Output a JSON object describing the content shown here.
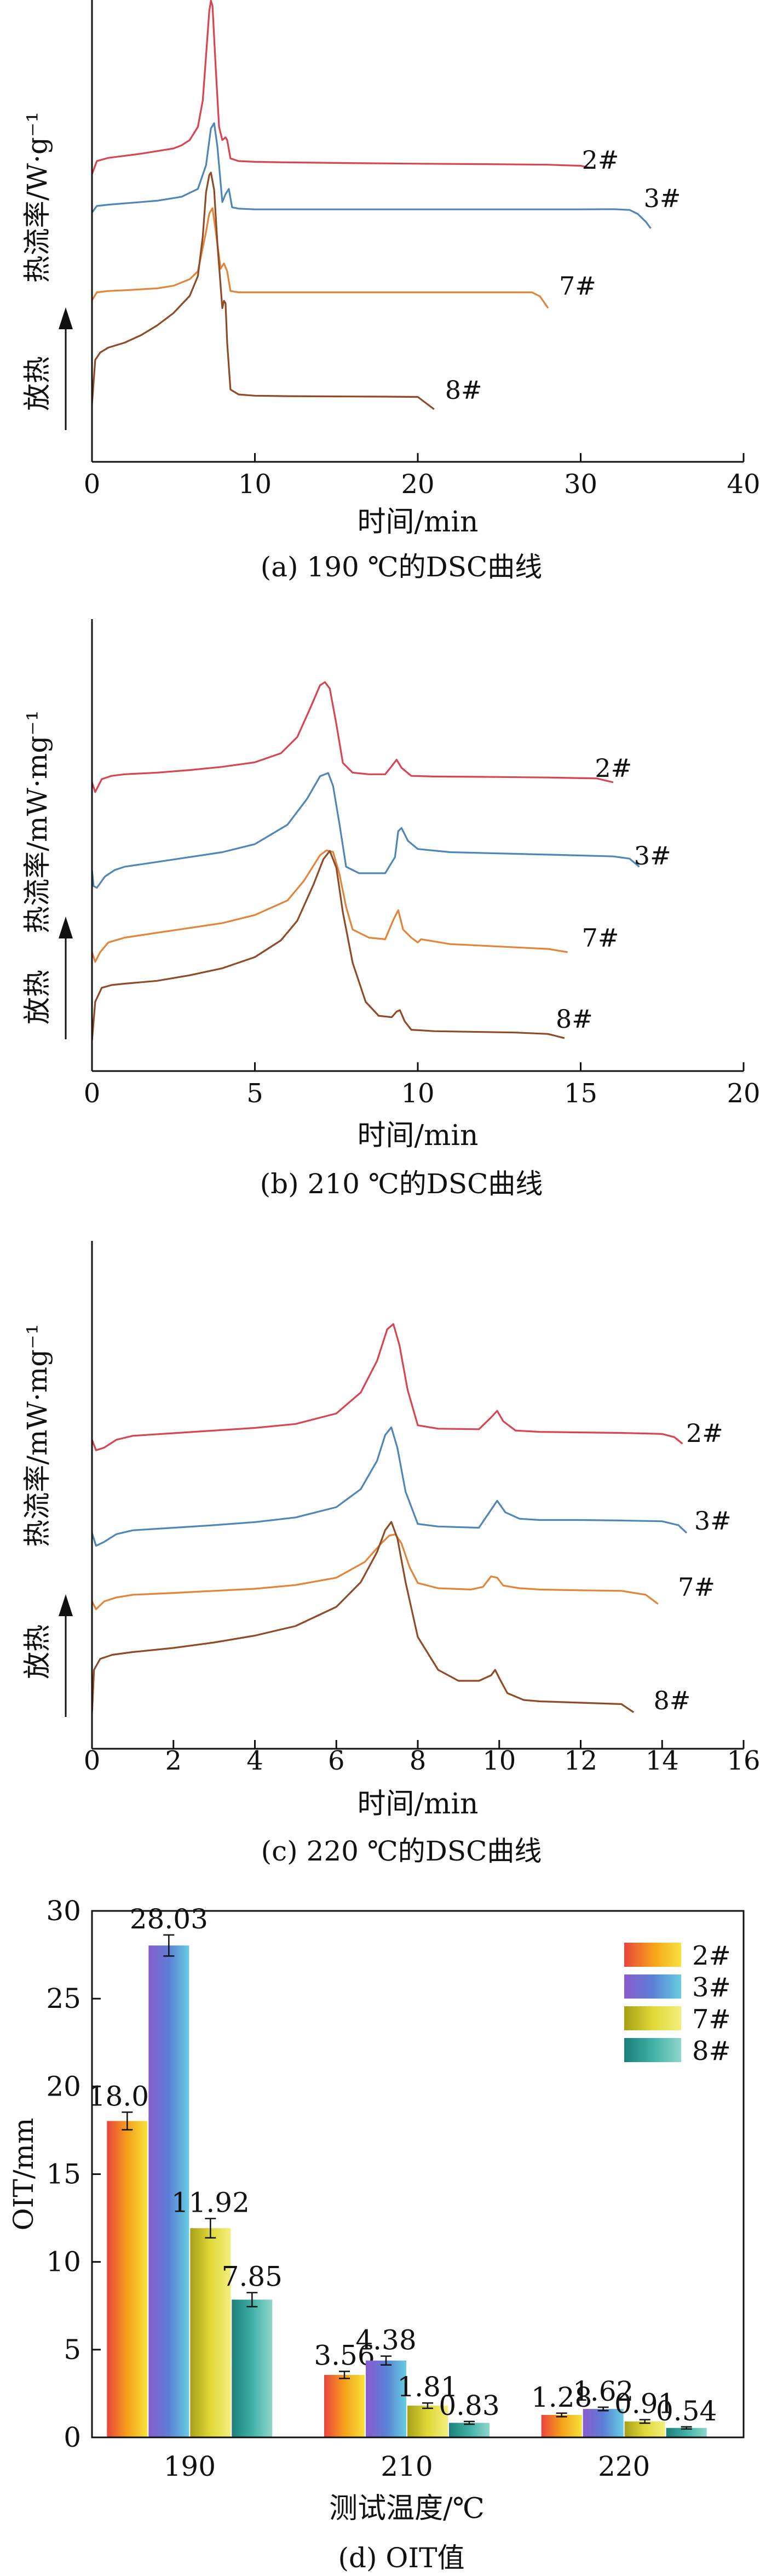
{
  "chart_data": [
    {
      "type": "line",
      "caption": "(a) 190 ℃的DSC曲线",
      "xlabel": "时间/min",
      "ylabel": "热流率/W·g⁻¹",
      "exo_label": "放热",
      "xlim": [
        0,
        40
      ],
      "xticks": [
        0,
        10,
        20,
        30,
        40
      ],
      "series": [
        {
          "name": "2#",
          "color": "#d94452",
          "label_x": 29.6,
          "label_dy": 0,
          "x": [
            0,
            0.3,
            1,
            2,
            3,
            4,
            5,
            5.5,
            6,
            6.5,
            6.8,
            7,
            7.2,
            7.3,
            7.4,
            7.6,
            7.8,
            8.0,
            8.2,
            8.3,
            8.5,
            9,
            10,
            12,
            15,
            20,
            25,
            28,
            30,
            30.5
          ],
          "y": [
            0.0,
            0.5,
            0.62,
            0.7,
            0.78,
            0.88,
            0.98,
            1.1,
            1.3,
            1.8,
            2.8,
            4.5,
            6.2,
            6.6,
            6.4,
            4.0,
            1.8,
            1.3,
            1.4,
            1.3,
            0.6,
            0.5,
            0.47,
            0.45,
            0.43,
            0.4,
            0.38,
            0.36,
            0.32,
            0.25
          ]
        },
        {
          "name": "3#",
          "color": "#4f86b8",
          "label_x": 33.4,
          "label_dy": 0,
          "x": [
            0,
            0.3,
            1,
            2,
            4,
            5.5,
            6.5,
            7,
            7.3,
            7.5,
            7.7,
            8.0,
            8.2,
            8.4,
            8.6,
            9,
            10,
            15,
            20,
            25,
            30,
            32,
            33,
            33.5,
            34,
            34.3
          ],
          "y": [
            0.0,
            0.25,
            0.3,
            0.35,
            0.45,
            0.6,
            0.9,
            1.8,
            3.2,
            3.4,
            2.5,
            0.4,
            0.7,
            0.9,
            0.2,
            0.15,
            0.12,
            0.12,
            0.12,
            0.12,
            0.12,
            0.13,
            0.1,
            -0.05,
            -0.35,
            -0.6
          ]
        },
        {
          "name": "7#",
          "color": "#e2853a",
          "label_x": 28.2,
          "label_dy": 0,
          "x": [
            0,
            0.3,
            1,
            2,
            4,
            5,
            6,
            6.5,
            7,
            7.2,
            7.4,
            7.6,
            7.9,
            8.1,
            8.3,
            8.5,
            9,
            10,
            15,
            20,
            25,
            27,
            27.5,
            28
          ],
          "y": [
            0.0,
            0.3,
            0.35,
            0.38,
            0.45,
            0.55,
            0.8,
            1.1,
            2.6,
            3.3,
            3.5,
            2.6,
            1.2,
            1.4,
            1.1,
            0.35,
            0.3,
            0.3,
            0.3,
            0.3,
            0.3,
            0.3,
            0.15,
            -0.3
          ]
        },
        {
          "name": "8#",
          "color": "#8f4a26",
          "label_x": 21.2,
          "label_dy": 0,
          "x": [
            0,
            0.2,
            0.5,
            1,
            2,
            3,
            4,
            5,
            6,
            6.5,
            6.8,
            7.0,
            7.2,
            7.3,
            7.5,
            7.7,
            8.0,
            8.1,
            8.2,
            8.3,
            8.5,
            9,
            10,
            12,
            15,
            18,
            20,
            21
          ],
          "y": [
            0.0,
            1.8,
            2.1,
            2.3,
            2.5,
            2.8,
            3.2,
            3.7,
            4.4,
            5.2,
            6.8,
            8.6,
            9.3,
            9.4,
            8.7,
            6.5,
            3.9,
            4.2,
            4.1,
            2.5,
            0.6,
            0.4,
            0.35,
            0.33,
            0.32,
            0.31,
            0.3,
            -0.2
          ]
        }
      ]
    },
    {
      "type": "line",
      "caption": "(b) 210 ℃的DSC曲线",
      "xlabel": "时间/min",
      "ylabel": "热流率/mW·mg⁻¹",
      "exo_label": "放热",
      "xlim": [
        0,
        20
      ],
      "xticks": [
        0,
        5,
        10,
        15,
        20
      ],
      "series": [
        {
          "name": "2#",
          "color": "#d94452",
          "label_x": 15.2,
          "label_dy": 0,
          "x": [
            0,
            0.1,
            0.3,
            0.6,
            1,
            2,
            3,
            4,
            5,
            5.8,
            6.3,
            6.7,
            7.0,
            7.15,
            7.3,
            7.5,
            7.7,
            8.0,
            8.5,
            9.0,
            9.2,
            9.35,
            9.5,
            9.8,
            10.5,
            12,
            14,
            15.5,
            16
          ],
          "y": [
            0.0,
            -0.3,
            0.1,
            0.2,
            0.25,
            0.3,
            0.38,
            0.48,
            0.62,
            0.9,
            1.4,
            2.3,
            3.0,
            3.1,
            2.9,
            1.8,
            0.6,
            0.3,
            0.25,
            0.25,
            0.5,
            0.7,
            0.45,
            0.2,
            0.18,
            0.17,
            0.15,
            0.12,
            0.0
          ]
        },
        {
          "name": "3#",
          "color": "#4f86b8",
          "label_x": 16.4,
          "label_dy": 0,
          "x": [
            0,
            0.05,
            0.15,
            0.4,
            0.7,
            1,
            2,
            3,
            4,
            5,
            6,
            6.6,
            7.0,
            7.25,
            7.4,
            7.6,
            7.8,
            8.2,
            9.0,
            9.3,
            9.4,
            9.5,
            9.7,
            10,
            11,
            13,
            15,
            16,
            16.5,
            16.8
          ],
          "y": [
            0.0,
            -0.5,
            -0.55,
            -0.2,
            0.0,
            0.1,
            0.25,
            0.4,
            0.55,
            0.8,
            1.4,
            2.2,
            2.9,
            3.0,
            2.6,
            1.4,
            0.1,
            -0.1,
            -0.1,
            0.4,
            1.2,
            1.3,
            0.9,
            0.65,
            0.55,
            0.5,
            0.45,
            0.42,
            0.35,
            0.1
          ]
        },
        {
          "name": "7#",
          "color": "#e2853a",
          "label_x": 14.8,
          "label_dy": 0,
          "x": [
            0,
            0.1,
            0.25,
            0.5,
            1,
            2,
            3,
            4,
            5,
            6,
            6.5,
            7.0,
            7.2,
            7.4,
            7.6,
            7.8,
            8.0,
            8.5,
            9.0,
            9.25,
            9.4,
            9.55,
            9.8,
            10.0,
            10.1,
            11,
            12,
            13,
            14,
            14.6
          ],
          "y": [
            0.0,
            -0.3,
            0.0,
            0.3,
            0.45,
            0.6,
            0.75,
            0.9,
            1.15,
            1.6,
            2.2,
            3.0,
            3.15,
            3.1,
            2.4,
            1.4,
            0.7,
            0.45,
            0.4,
            1.0,
            1.3,
            0.7,
            0.45,
            0.3,
            0.4,
            0.25,
            0.2,
            0.15,
            0.1,
            0.0
          ]
        },
        {
          "name": "8#",
          "color": "#8f4a26",
          "label_x": 14.0,
          "label_dy": -14,
          "x": [
            0,
            0.1,
            0.3,
            0.6,
            1,
            2,
            3,
            4,
            5,
            5.8,
            6.3,
            6.8,
            7.1,
            7.3,
            7.5,
            7.7,
            8.0,
            8.4,
            8.8,
            9.2,
            9.35,
            9.45,
            9.6,
            9.8,
            10.5,
            12,
            13,
            14,
            14.5
          ],
          "y": [
            0.0,
            1.4,
            1.9,
            2.0,
            2.05,
            2.15,
            2.35,
            2.6,
            3.0,
            3.6,
            4.3,
            5.6,
            6.5,
            6.8,
            6.2,
            4.6,
            2.8,
            1.4,
            0.9,
            0.85,
            1.05,
            1.1,
            0.7,
            0.4,
            0.35,
            0.32,
            0.3,
            0.25,
            0.1
          ]
        }
      ]
    },
    {
      "type": "line",
      "caption": "(c) 220 ℃的DSC曲线",
      "xlabel": "时间/min",
      "ylabel": "热流率/mW·mg⁻¹",
      "exo_label": "放热",
      "xlim": [
        0,
        16
      ],
      "xticks": [
        0,
        2,
        4,
        6,
        8,
        10,
        12,
        14,
        16
      ],
      "series": [
        {
          "name": "2#",
          "color": "#d94452",
          "label_x": 14.4,
          "label_dy": 14,
          "x": [
            0,
            0.1,
            0.3,
            0.6,
            1,
            2,
            3,
            4,
            5,
            6,
            6.6,
            7.0,
            7.25,
            7.4,
            7.55,
            7.75,
            8.0,
            8.5,
            9.5,
            9.8,
            9.95,
            10.1,
            10.4,
            11,
            12,
            13,
            14,
            14.3,
            14.5
          ],
          "y": [
            0.0,
            -0.4,
            -0.3,
            0.0,
            0.15,
            0.25,
            0.35,
            0.45,
            0.6,
            1.0,
            1.8,
            3.0,
            4.2,
            4.4,
            3.6,
            1.9,
            0.55,
            0.42,
            0.4,
            0.85,
            1.1,
            0.7,
            0.35,
            0.3,
            0.28,
            0.26,
            0.22,
            0.1,
            -0.15
          ]
        },
        {
          "name": "3#",
          "color": "#4f86b8",
          "label_x": 14.6,
          "label_dy": 4,
          "x": [
            0,
            0.1,
            0.3,
            0.6,
            1,
            2,
            3,
            4,
            5,
            6,
            6.6,
            7.0,
            7.2,
            7.35,
            7.5,
            7.7,
            8.0,
            8.5,
            9.5,
            9.8,
            9.95,
            10.15,
            10.5,
            11,
            12,
            13,
            14,
            14.4,
            14.6
          ],
          "y": [
            0.0,
            -0.5,
            -0.35,
            -0.05,
            0.1,
            0.2,
            0.3,
            0.42,
            0.6,
            1.0,
            1.7,
            2.8,
            3.8,
            4.1,
            3.3,
            1.6,
            0.35,
            0.25,
            0.2,
            0.9,
            1.25,
            0.8,
            0.55,
            0.5,
            0.5,
            0.48,
            0.45,
            0.3,
            0.0
          ]
        },
        {
          "name": "7#",
          "color": "#e2853a",
          "label_x": 14.2,
          "label_dy": 0,
          "x": [
            0,
            0.1,
            0.3,
            0.6,
            1,
            2,
            3,
            4,
            5,
            6,
            6.7,
            7.1,
            7.3,
            7.45,
            7.6,
            7.8,
            8.0,
            8.5,
            9.3,
            9.6,
            9.8,
            9.95,
            10.1,
            10.5,
            11,
            12,
            13,
            13.6,
            13.9
          ],
          "y": [
            0.0,
            -0.3,
            0.0,
            0.15,
            0.25,
            0.32,
            0.4,
            0.48,
            0.62,
            0.9,
            1.5,
            2.2,
            2.5,
            2.55,
            2.2,
            1.3,
            0.7,
            0.5,
            0.45,
            0.55,
            0.95,
            0.9,
            0.6,
            0.5,
            0.45,
            0.42,
            0.4,
            0.25,
            -0.1
          ]
        },
        {
          "name": "8#",
          "color": "#8f4a26",
          "label_x": 13.6,
          "label_dy": 2,
          "x": [
            0,
            0.05,
            0.2,
            0.5,
            1,
            2,
            3,
            4,
            5,
            6,
            6.6,
            7.0,
            7.2,
            7.35,
            7.5,
            7.7,
            8.0,
            8.5,
            9.0,
            9.5,
            9.8,
            9.9,
            10.0,
            10.2,
            10.6,
            11,
            12,
            13,
            13.3
          ],
          "y": [
            0.0,
            1.6,
            2.0,
            2.15,
            2.25,
            2.4,
            2.6,
            2.85,
            3.2,
            3.9,
            4.8,
            5.9,
            6.7,
            7.0,
            6.4,
            4.8,
            2.8,
            1.6,
            1.2,
            1.2,
            1.4,
            1.6,
            1.3,
            0.75,
            0.5,
            0.45,
            0.4,
            0.35,
            0.05
          ]
        }
      ]
    },
    {
      "type": "bar",
      "caption": "(d) OIT值",
      "xlabel": "测试温度/℃",
      "ylabel": "OIT/mm",
      "ylim": [
        0,
        30
      ],
      "yticks": [
        0,
        5,
        10,
        15,
        20,
        25,
        30
      ],
      "categories": [
        "190",
        "210",
        "220"
      ],
      "legend_position": "top-right",
      "series": [
        {
          "name": "2#",
          "gradient": [
            "#e8453c",
            "#f6a019",
            "#f7e23a"
          ],
          "values": [
            18.03,
            3.56,
            1.28
          ],
          "errors": [
            0.5,
            0.2,
            0.1
          ],
          "labels": [
            "18.03",
            "3.56",
            "1.28"
          ]
        },
        {
          "name": "3#",
          "gradient": [
            "#8a5bd0",
            "#5a7fd6",
            "#66cde0"
          ],
          "values": [
            28.03,
            4.38,
            1.62
          ],
          "errors": [
            0.6,
            0.25,
            0.1
          ],
          "labels": [
            "28.03",
            "4.38",
            "1.62"
          ]
        },
        {
          "name": "7#",
          "gradient": [
            "#a6a018",
            "#e0d838",
            "#f3ee7c"
          ],
          "values": [
            11.92,
            1.81,
            0.91
          ],
          "errors": [
            0.55,
            0.15,
            0.1
          ],
          "labels": [
            "11.92",
            "1.81",
            "0.91"
          ]
        },
        {
          "name": "8#",
          "gradient": [
            "#1d7f7c",
            "#3fb0a6",
            "#8fd6cc"
          ],
          "values": [
            7.85,
            0.83,
            0.54
          ],
          "errors": [
            0.4,
            0.08,
            0.06
          ],
          "labels": [
            "7.85",
            "0.83",
            "0.54"
          ]
        }
      ]
    }
  ]
}
